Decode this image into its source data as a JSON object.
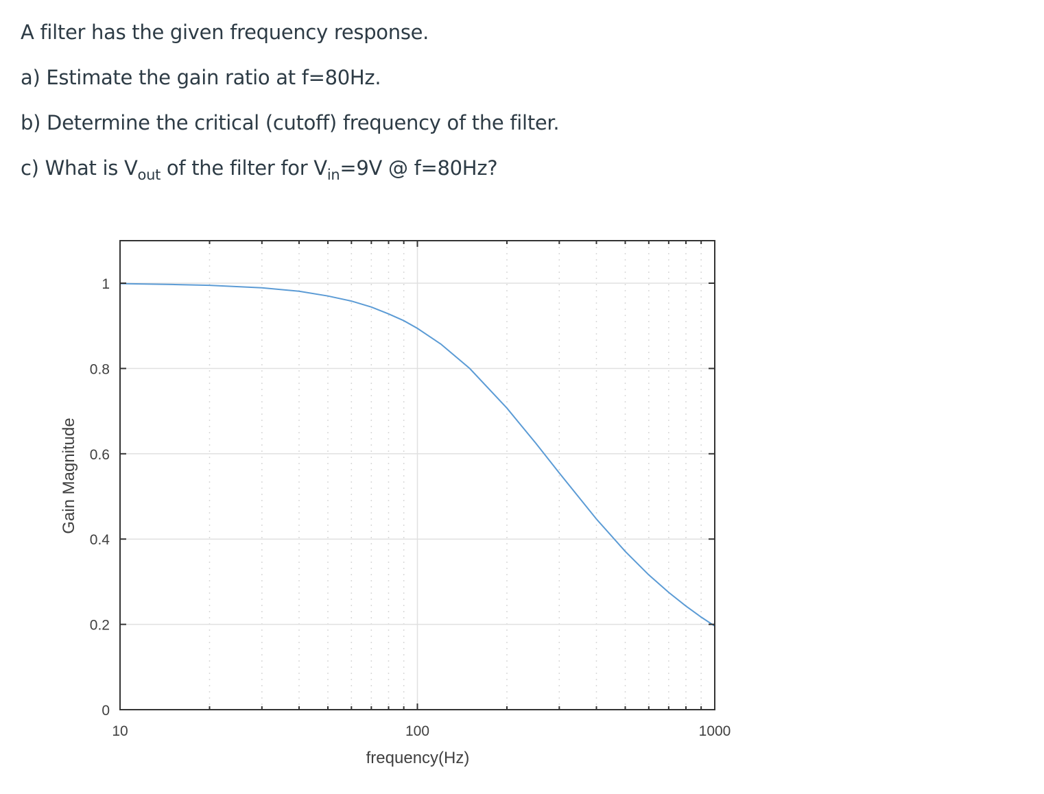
{
  "question": {
    "intro": "A filter has the given frequency response.",
    "part_a": "a) Estimate the gain ratio at f=80Hz.",
    "part_b": "b) Determine the critical (cutoff) frequency of the filter.",
    "part_c": {
      "prefix": "c) What is V",
      "sub1": "out",
      "middle": " of the filter for V",
      "sub2": "in",
      "suffix": "=9V @ f=80Hz?"
    }
  },
  "chart_data": {
    "type": "line",
    "title": "",
    "xlabel": "frequency(Hz)",
    "ylabel": "Gain Magnitude",
    "xscale": "log",
    "xlim": [
      10,
      1000
    ],
    "ylim": [
      0,
      1.1
    ],
    "xticks": [
      10,
      100,
      1000
    ],
    "xtick_labels": [
      "10",
      "100",
      "1000"
    ],
    "yticks": [
      0,
      0.2,
      0.4,
      0.6,
      0.8,
      1
    ],
    "ytick_labels": [
      "0",
      "0.2",
      "0.4",
      "0.6",
      "0.8",
      "1"
    ],
    "grid": true,
    "legend": null,
    "line_color": "#5b9bd5",
    "series": [
      {
        "name": "Gain Magnitude",
        "x": [
          10,
          15,
          20,
          30,
          40,
          50,
          60,
          70,
          80,
          90,
          100,
          120,
          150,
          200,
          250,
          300,
          400,
          500,
          600,
          700,
          800,
          900,
          1000
        ],
        "values": [
          0.999,
          0.997,
          0.995,
          0.989,
          0.981,
          0.97,
          0.958,
          0.944,
          0.928,
          0.912,
          0.894,
          0.857,
          0.8,
          0.707,
          0.625,
          0.555,
          0.447,
          0.371,
          0.316,
          0.275,
          0.243,
          0.217,
          0.196
        ]
      }
    ]
  }
}
